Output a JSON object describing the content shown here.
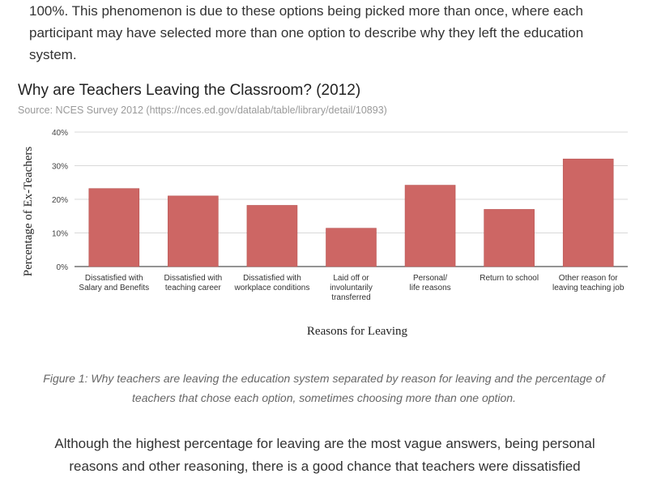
{
  "article": {
    "paragraph_top": "100%. This phenomenon is due to these options being picked more than once, where each participant may have selected more than one option to describe why they left the education system.",
    "caption": "Figure 1: Why teachers are leaving the education system separated by reason for leaving and the percentage of teachers that chose each option, sometimes choosing more than one option.",
    "paragraph_bottom": "Although the highest percentage for leaving are the most vague answers, being personal reasons and other reasoning, there is a good chance that teachers were dissatisfied"
  },
  "chart_data": {
    "type": "bar",
    "title": "Why are Teachers Leaving the Classroom? (2012)",
    "subtitle": "Source: NCES Survey 2012 (https://nces.ed.gov/datalab/table/library/detail/10893)",
    "xlabel": "Reasons for Leaving",
    "ylabel": "Percentage of Ex-Teachers",
    "categories": [
      [
        "Dissatisfied with",
        "Salary and Benefits"
      ],
      [
        "Dissatisfied with",
        "teaching career"
      ],
      [
        "Dissatisfied with",
        "workplace conditions"
      ],
      [
        "Laid off or",
        "involuntarily",
        "transferred"
      ],
      [
        "Personal/",
        "life reasons"
      ],
      [
        "Return to school"
      ],
      [
        "Other reason for",
        "leaving teaching job"
      ]
    ],
    "values": [
      23.2,
      21.0,
      18.2,
      11.4,
      24.2,
      17.0,
      32.0
    ],
    "ylim": [
      0,
      40
    ],
    "yticks": [
      "0%",
      "10%",
      "20%",
      "30%",
      "40%"
    ],
    "grid": true,
    "bar_color": "#cd6664"
  }
}
